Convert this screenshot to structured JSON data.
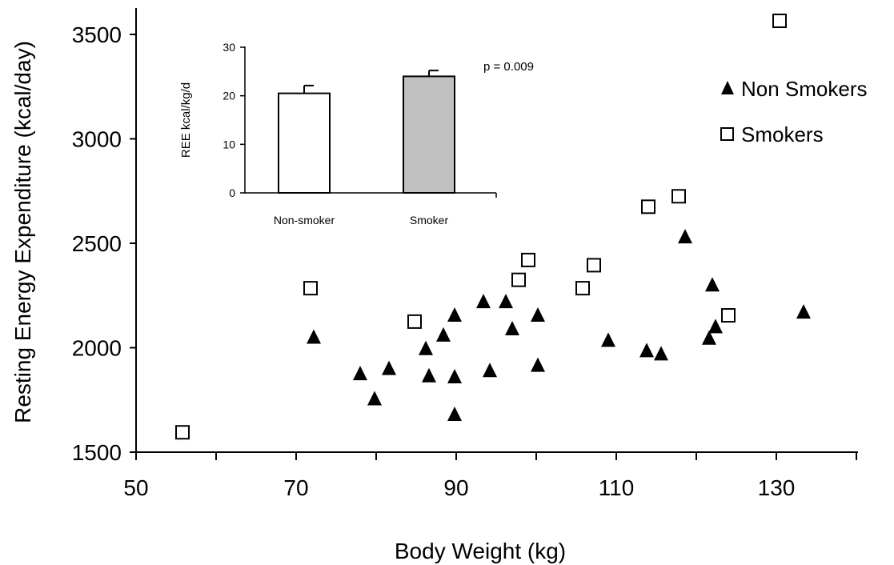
{
  "chart_data": [
    {
      "type": "scatter",
      "xlabel": "Body Weight (kg)",
      "ylabel": "Resting Energy Expenditure (kcal/day)",
      "xlim": [
        50,
        140
      ],
      "ylim": [
        1500,
        3600
      ],
      "x_ticks": [
        "50",
        "70",
        "90",
        "110",
        "130"
      ],
      "y_ticks": [
        "1500",
        "2000",
        "2500",
        "3000",
        "3500"
      ],
      "legend_position": "right",
      "series": [
        {
          "name": "Non Smokers",
          "marker": "filled-triangle",
          "color": "#000000",
          "points": [
            [
              72.2,
              2050
            ],
            [
              78.0,
              1875
            ],
            [
              79.8,
              1755
            ],
            [
              81.6,
              1900
            ],
            [
              86.2,
              1995
            ],
            [
              86.6,
              1865
            ],
            [
              88.4,
              2060
            ],
            [
              89.8,
              2155
            ],
            [
              89.8,
              1860
            ],
            [
              89.8,
              1680
            ],
            [
              93.4,
              2220
            ],
            [
              94.2,
              1890
            ],
            [
              96.2,
              2220
            ],
            [
              97.0,
              2090
            ],
            [
              100.2,
              2155
            ],
            [
              100.2,
              1915
            ],
            [
              109.0,
              2035
            ],
            [
              113.8,
              1985
            ],
            [
              115.6,
              1970
            ],
            [
              118.6,
              2530
            ],
            [
              121.6,
              2045
            ],
            [
              122.0,
              2300
            ],
            [
              122.4,
              2100
            ],
            [
              133.4,
              2170
            ]
          ]
        },
        {
          "name": "Smokers",
          "marker": "open-square",
          "color": "#000000",
          "points": [
            [
              55.8,
              1595
            ],
            [
              71.8,
              2285
            ],
            [
              84.8,
              2125
            ],
            [
              97.8,
              2325
            ],
            [
              99.0,
              2420
            ],
            [
              105.8,
              2285
            ],
            [
              107.2,
              2395
            ],
            [
              114.0,
              2675
            ],
            [
              117.8,
              2725
            ],
            [
              124.0,
              2155
            ],
            [
              130.4,
              3565
            ]
          ]
        }
      ]
    },
    {
      "type": "bar",
      "categories": [
        "Non-smoker",
        "Smoker"
      ],
      "values": [
        20.5,
        24.0
      ],
      "errors": [
        1.6,
        1.2
      ],
      "bar_colors": [
        "#ffffff",
        "#c0c0c0"
      ],
      "ylabel": "REE kcal/kg/d",
      "ylim": [
        0,
        30
      ],
      "y_ticks": [
        "0",
        "10",
        "20",
        "30"
      ],
      "annotation": "p = 0.009"
    }
  ]
}
